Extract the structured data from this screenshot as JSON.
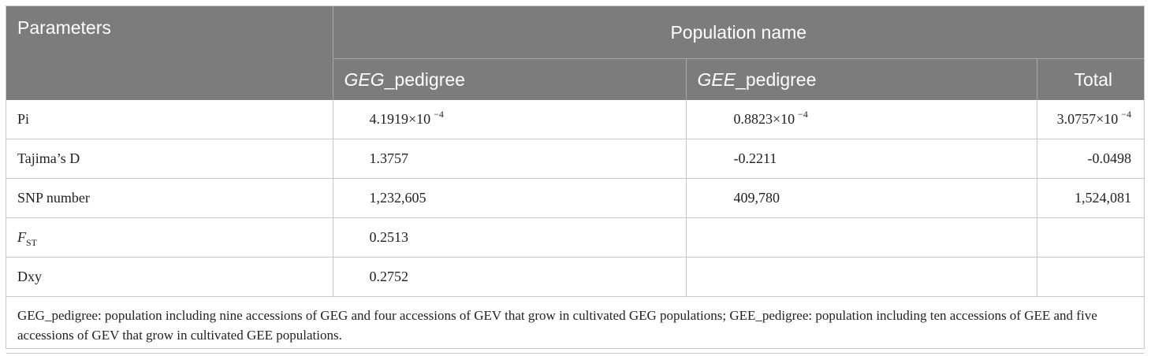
{
  "header": {
    "col_parameters": "Parameters",
    "col_group": "Population name",
    "col_geg_italic": "GEG",
    "col_geg_suffix": "_pedigree",
    "col_gee_italic": "GEE",
    "col_gee_suffix": "_pedigree",
    "col_total": "Total"
  },
  "rows": [
    {
      "param": "Pi",
      "geg_base": "4.1919×10",
      "geg_exp": "−4",
      "gee_base": "0.8823×10",
      "gee_exp": "−4",
      "total_base": "3.0757×10",
      "total_exp": "−4"
    },
    {
      "param": "Tajima’s D",
      "geg": "1.3757",
      "gee": "-0.2211",
      "total": "-0.0498"
    },
    {
      "param": "SNP number",
      "geg": "1,232,605",
      "gee": "409,780",
      "total": "1,524,081"
    },
    {
      "param_italic": "F",
      "param_sub": "ST",
      "geg": "0.2513",
      "gee": "",
      "total": ""
    },
    {
      "param": "Dxy",
      "geg": "0.2752",
      "gee": "",
      "total": ""
    }
  ],
  "footnote": "GEG_pedigree: population including nine accessions of GEG and four accessions of GEV that grow in cultivated GEG populations; GEE_pedigree: population including ten accessions of GEE and five accessions of GEV that grow in cultivated GEE populations."
}
